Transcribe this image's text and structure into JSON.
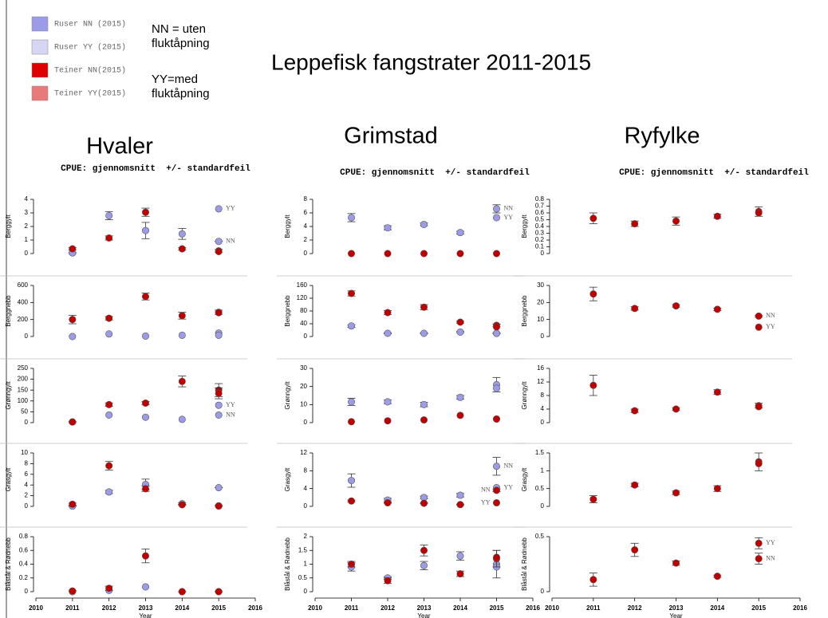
{
  "title": "Leppefisk fangstrater 2011-2015",
  "legend": [
    {
      "label": "Ruser NN (2015)",
      "color": "#9b9be8"
    },
    {
      "label": "Ruser YY (2015)",
      "color": "#d6d6f4"
    },
    {
      "label": "Teiner NN(2015)",
      "color": "#e00000"
    },
    {
      "label": "Teiner YY(2015)",
      "color": "#e87a7a"
    }
  ],
  "notes": [
    "NN = uten fluktåpning",
    "YY=med fluktåpning"
  ],
  "columns": [
    {
      "title": "Hvaler",
      "subtitle": "CPUE: gjennomsnitt  +/- standardfeil"
    },
    {
      "title": "Grimstad",
      "subtitle": "CPUE: gjennomsnitt  +/- standardfeil"
    },
    {
      "title": "Ryfylke",
      "subtitle": "CPUE: gjennomsnitt  +/- standardfeil"
    }
  ],
  "chart_data": [
    {
      "type": "scatter",
      "ylabel": "Berggylt",
      "xlim": [
        2010,
        2016
      ],
      "ylim": [
        0,
        4
      ],
      "yticks": [
        0,
        1,
        2,
        3,
        4
      ],
      "series": [
        {
          "color": "#9b9be8",
          "x": [
            2011,
            2012,
            2013,
            2014,
            2015
          ],
          "values": [
            0.05,
            2.8,
            1.7,
            1.45,
            0.9
          ],
          "errors": [
            0.05,
            0.3,
            0.6,
            0.4,
            0
          ],
          "label": "NN"
        },
        {
          "color": "#9b9be8",
          "x": [
            2015
          ],
          "values": [
            3.3
          ],
          "label": "YY"
        },
        {
          "color": "#c00000",
          "x": [
            2011,
            2012,
            2013,
            2014,
            2015
          ],
          "values": [
            0.35,
            1.15,
            3.05,
            0.35,
            0.2
          ],
          "errors": [
            0.1,
            0.15,
            0.3,
            0.1,
            0.1
          ]
        },
        {
          "color": "#c00000",
          "x": [
            2015
          ],
          "values": [
            0.15
          ]
        }
      ]
    },
    {
      "type": "scatter",
      "ylabel": "Berggnebb",
      "xlim": [
        2010,
        2016
      ],
      "ylim": [
        0,
        600
      ],
      "yticks": [
        0,
        200,
        400,
        600
      ],
      "series": [
        {
          "color": "#9b9be8",
          "x": [
            2011,
            2012,
            2013,
            2014,
            2015
          ],
          "values": [
            0,
            30,
            5,
            15,
            40
          ]
        },
        {
          "color": "#9b9be8",
          "x": [
            2015
          ],
          "values": [
            15
          ]
        },
        {
          "color": "#c00000",
          "x": [
            2011,
            2012,
            2013,
            2014,
            2015
          ],
          "values": [
            200,
            215,
            470,
            245,
            285
          ],
          "errors": [
            50,
            20,
            40,
            40,
            25
          ]
        },
        {
          "color": "#c00000",
          "x": [
            2015
          ],
          "values": [
            280
          ]
        }
      ]
    },
    {
      "type": "scatter",
      "ylabel": "Grønngylt",
      "xlim": [
        2010,
        2016
      ],
      "ylim": [
        0,
        250
      ],
      "yticks": [
        0,
        50,
        100,
        150,
        200,
        250
      ],
      "series": [
        {
          "color": "#9b9be8",
          "x": [
            2011,
            2012,
            2013,
            2014,
            2015
          ],
          "values": [
            3,
            35,
            25,
            15,
            35
          ],
          "label": "NN"
        },
        {
          "color": "#9b9be8",
          "x": [
            2015
          ],
          "values": [
            80
          ],
          "label": "YY"
        },
        {
          "color": "#c00000",
          "x": [
            2011,
            2012,
            2013,
            2014,
            2015
          ],
          "values": [
            3,
            83,
            90,
            190,
            150
          ],
          "errors": [
            3,
            8,
            8,
            25,
            30
          ]
        },
        {
          "color": "#c00000",
          "x": [
            2015
          ],
          "values": [
            135
          ],
          "errors": [
            25
          ]
        }
      ]
    },
    {
      "type": "scatter",
      "ylabel": "Grasgylt",
      "xlim": [
        2010,
        2016
      ],
      "ylim": [
        0,
        10
      ],
      "yticks": [
        0,
        2,
        4,
        6,
        8,
        10
      ],
      "series": [
        {
          "color": "#9b9be8",
          "x": [
            2011,
            2012,
            2013,
            2014,
            2015
          ],
          "values": [
            0.05,
            2.7,
            4.1,
            0.5,
            3.5
          ],
          "errors": [
            0.05,
            0.3,
            1,
            0.2,
            0
          ]
        },
        {
          "color": "#c00000",
          "x": [
            2011,
            2012,
            2013,
            2014,
            2015
          ],
          "values": [
            0.4,
            7.6,
            3.3,
            0.3,
            0.1
          ],
          "errors": [
            0.2,
            0.8,
            0.5,
            0.1,
            0.1
          ]
        },
        {
          "color": "#c00000",
          "x": [
            2015
          ],
          "values": [
            0.05
          ]
        }
      ]
    },
    {
      "type": "scatter",
      "ylabel": "Blåstål & Rødnebb",
      "xlim": [
        2010,
        2016
      ],
      "ylim": [
        0,
        0.8
      ],
      "yticks": [
        0,
        0.2,
        0.4,
        0.6,
        0.8
      ],
      "xticks": [
        2010,
        2011,
        2012,
        2013,
        2014,
        2015,
        2016
      ],
      "xlabel": "Year",
      "series": [
        {
          "color": "#9b9be8",
          "x": [
            2011,
            2012,
            2013,
            2014,
            2015
          ],
          "values": [
            0,
            0.02,
            0.07,
            0,
            0
          ]
        },
        {
          "color": "#c00000",
          "x": [
            2011,
            2012,
            2013,
            2014,
            2015
          ],
          "values": [
            0.01,
            0.05,
            0.52,
            0,
            0
          ],
          "errors": [
            0.01,
            0.03,
            0.1,
            0,
            0
          ]
        }
      ]
    },
    {
      "type": "scatter",
      "ylabel": "Berggylt",
      "xlim": [
        2010,
        2016
      ],
      "ylim": [
        0,
        8
      ],
      "yticks": [
        0,
        2,
        4,
        6,
        8
      ],
      "series": [
        {
          "color": "#9b9be8",
          "x": [
            2011,
            2012,
            2013,
            2014,
            2015
          ],
          "values": [
            5.3,
            3.8,
            4.3,
            3.1,
            6.6
          ],
          "errors": [
            0.6,
            0.3,
            0.2,
            0.2,
            0.6
          ],
          "label": "NN"
        },
        {
          "color": "#9b9be8",
          "x": [
            2015
          ],
          "values": [
            5.3
          ],
          "label": "YY"
        },
        {
          "color": "#c00000",
          "x": [
            2011,
            2012,
            2013,
            2014,
            2015
          ],
          "values": [
            0,
            0,
            0,
            0,
            0
          ]
        }
      ]
    },
    {
      "type": "scatter",
      "ylabel": "Berggnebb",
      "xlim": [
        2010,
        2016
      ],
      "ylim": [
        0,
        160
      ],
      "yticks": [
        0,
        40,
        80,
        120,
        160
      ],
      "series": [
        {
          "color": "#9b9be8",
          "x": [
            2011,
            2012,
            2013,
            2014,
            2015
          ],
          "values": [
            33,
            10,
            10,
            14,
            10
          ],
          "errors": [
            4,
            1,
            1,
            2,
            1
          ]
        },
        {
          "color": "#9b9be8",
          "x": [
            2015
          ],
          "values": [
            10
          ]
        },
        {
          "color": "#c00000",
          "x": [
            2011,
            2012,
            2013,
            2014,
            2015
          ],
          "values": [
            135,
            75,
            92,
            45,
            35
          ],
          "errors": [
            8,
            6,
            8,
            3,
            4
          ]
        },
        {
          "color": "#c00000",
          "x": [
            2015
          ],
          "values": [
            30
          ]
        }
      ]
    },
    {
      "type": "scatter",
      "ylabel": "Grønngylt",
      "xlim": [
        2010,
        2016
      ],
      "ylim": [
        0,
        30
      ],
      "yticks": [
        0,
        10,
        20,
        30
      ],
      "series": [
        {
          "color": "#9b9be8",
          "x": [
            2011,
            2012,
            2013,
            2014,
            2015
          ],
          "values": [
            11.5,
            11.5,
            10,
            14,
            21
          ],
          "errors": [
            2,
            1,
            1.2,
            1,
            4
          ]
        },
        {
          "color": "#9b9be8",
          "x": [
            2015
          ],
          "values": [
            19
          ]
        },
        {
          "color": "#c00000",
          "x": [
            2011,
            2012,
            2013,
            2014,
            2015
          ],
          "values": [
            0.5,
            1,
            1.5,
            4,
            2
          ]
        },
        {
          "color": "#c00000",
          "x": [
            2015
          ],
          "values": [
            2
          ]
        }
      ]
    },
    {
      "type": "scatter",
      "ylabel": "Grasgylt",
      "xlim": [
        2010,
        2016
      ],
      "ylim": [
        0,
        12
      ],
      "yticks": [
        0,
        4,
        8,
        12
      ],
      "series": [
        {
          "color": "#9b9be8",
          "x": [
            2011,
            2012,
            2013,
            2014,
            2015
          ],
          "values": [
            5.8,
            1.4,
            2,
            2.5,
            9
          ],
          "errors": [
            1.5,
            0.4,
            0.3,
            0.4,
            2
          ],
          "label": "NN"
        },
        {
          "color": "#9b9be8",
          "x": [
            2015
          ],
          "values": [
            4.2
          ],
          "label": "YY"
        },
        {
          "color": "#c00000",
          "x": [
            2011,
            2012,
            2013,
            2014,
            2015
          ],
          "values": [
            1.2,
            0.8,
            0.7,
            0.4,
            3.6
          ],
          "errors": [
            0.2,
            0.1,
            0.1,
            0.1,
            0.3
          ],
          "label": "NN",
          "label_side": "left"
        },
        {
          "color": "#c00000",
          "x": [
            2015
          ],
          "values": [
            0.8
          ],
          "label": "YY",
          "label_side": "left"
        }
      ]
    },
    {
      "type": "scatter",
      "ylabel": "Blåstål & Rødnebb",
      "xlim": [
        2010,
        2016
      ],
      "ylim": [
        0,
        2
      ],
      "yticks": [
        0,
        0.5,
        1,
        1.5,
        2
      ],
      "xticks": [
        2010,
        2011,
        2012,
        2013,
        2014,
        2015,
        2016
      ],
      "xlabel": "Year",
      "series": [
        {
          "color": "#9b9be8",
          "x": [
            2011,
            2012,
            2013,
            2014,
            2015
          ],
          "values": [
            0.9,
            0.5,
            0.95,
            1.3,
            1
          ],
          "errors": [
            0.15,
            0.05,
            0.15,
            0.15,
            0.5
          ]
        },
        {
          "color": "#9b9be8",
          "x": [
            2015
          ],
          "values": [
            0.9
          ]
        },
        {
          "color": "#c00000",
          "x": [
            2011,
            2012,
            2013,
            2014,
            2015
          ],
          "values": [
            1,
            0.4,
            1.5,
            0.65,
            1.2
          ],
          "errors": [
            0.1,
            0.1,
            0.2,
            0.1,
            0.3
          ]
        },
        {
          "color": "#c00000",
          "x": [
            2015
          ],
          "values": [
            1.25
          ]
        }
      ]
    },
    {
      "type": "scatter",
      "ylabel": "Berggylt",
      "xlim": [
        2010,
        2016
      ],
      "ylim": [
        0,
        0.8
      ],
      "yticks": [
        0,
        0.1,
        0.2,
        0.3,
        0.4,
        0.5,
        0.6,
        0.7,
        0.8
      ],
      "series": [
        {
          "color": "#c00000",
          "x": [
            2011,
            2012,
            2013,
            2014,
            2015
          ],
          "values": [
            0.52,
            0.44,
            0.48,
            0.55,
            0.62
          ],
          "errors": [
            0.08,
            0.04,
            0.06,
            0.03,
            0.07
          ]
        },
        {
          "color": "#c00000",
          "x": [
            2015
          ],
          "values": [
            0.6
          ]
        }
      ]
    },
    {
      "type": "scatter",
      "ylabel": "Berggnebb",
      "xlim": [
        2010,
        2016
      ],
      "ylim": [
        0,
        30
      ],
      "yticks": [
        0,
        10,
        20,
        30
      ],
      "series": [
        {
          "color": "#c00000",
          "x": [
            2011,
            2012,
            2013,
            2014,
            2015
          ],
          "values": [
            25,
            16.5,
            18,
            16,
            12
          ],
          "errors": [
            4,
            1,
            0.7,
            0.7,
            0.5
          ],
          "label": "NN"
        },
        {
          "color": "#c00000",
          "x": [
            2015
          ],
          "values": [
            5.5
          ],
          "label": "YY"
        }
      ]
    },
    {
      "type": "scatter",
      "ylabel": "Grønngylt",
      "xlim": [
        2010,
        2016
      ],
      "ylim": [
        0,
        16
      ],
      "yticks": [
        0,
        4,
        8,
        12,
        16
      ],
      "series": [
        {
          "color": "#c00000",
          "x": [
            2011,
            2012,
            2013,
            2014,
            2015
          ],
          "values": [
            11,
            3.5,
            4,
            9,
            5
          ],
          "errors": [
            3,
            0.5,
            0.4,
            0.7,
            0.7
          ]
        },
        {
          "color": "#c00000",
          "x": [
            2015
          ],
          "values": [
            4.7
          ]
        }
      ]
    },
    {
      "type": "scatter",
      "ylabel": "Grasgylt",
      "xlim": [
        2010,
        2016
      ],
      "ylim": [
        0,
        1.5
      ],
      "yticks": [
        0,
        0.5,
        1,
        1.5
      ],
      "series": [
        {
          "color": "#c00000",
          "x": [
            2011,
            2012,
            2013,
            2014,
            2015
          ],
          "values": [
            0.2,
            0.6,
            0.38,
            0.5,
            1.25
          ],
          "errors": [
            0.1,
            0.05,
            0.05,
            0.08,
            0.25
          ]
        },
        {
          "color": "#c00000",
          "x": [
            2015
          ],
          "values": [
            1.2
          ]
        }
      ]
    },
    {
      "type": "scatter",
      "ylabel": "Blåstål & Rødnebb",
      "xlim": [
        2010,
        2016
      ],
      "ylim": [
        0,
        0.5
      ],
      "yticks": [
        0,
        0.5
      ],
      "xticks": [
        2010,
        2011,
        2012,
        2013,
        2014,
        2015,
        2016
      ],
      "xlabel": "Year",
      "series": [
        {
          "color": "#c00000",
          "x": [
            2011,
            2012,
            2013,
            2014,
            2015
          ],
          "values": [
            0.11,
            0.38,
            0.26,
            0.14,
            0.44
          ],
          "errors": [
            0.06,
            0.06,
            0.02,
            0.01,
            0.05
          ],
          "label": "YY"
        },
        {
          "color": "#c00000",
          "x": [
            2015
          ],
          "values": [
            0.3
          ],
          "errors": [
            0.05
          ],
          "label": "NN"
        }
      ]
    }
  ]
}
